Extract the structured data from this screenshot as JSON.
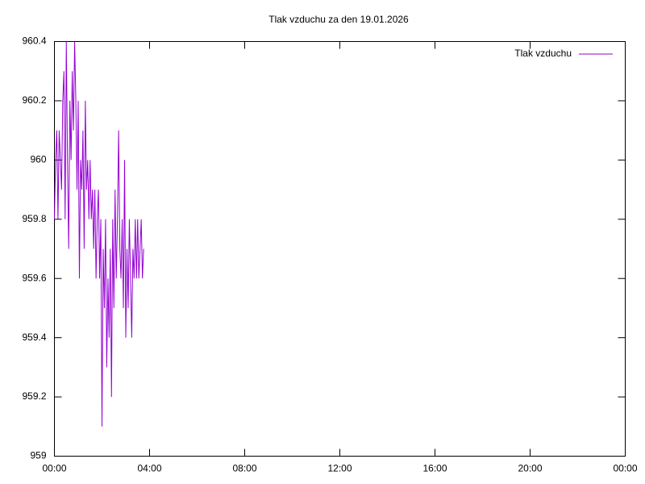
{
  "chart_data": {
    "type": "line",
    "title": "Tlak vzduchu za den 19.01.2026",
    "x": [
      0,
      0.05,
      0.1,
      0.15,
      0.2,
      0.25,
      0.3,
      0.35,
      0.4,
      0.45,
      0.5,
      0.55,
      0.6,
      0.65,
      0.7,
      0.75,
      0.8,
      0.85,
      0.9,
      0.95,
      1.0,
      1.05,
      1.1,
      1.15,
      1.2,
      1.25,
      1.3,
      1.35,
      1.4,
      1.45,
      1.5,
      1.55,
      1.6,
      1.65,
      1.7,
      1.75,
      1.8,
      1.85,
      1.9,
      1.95,
      2.0,
      2.05,
      2.1,
      2.15,
      2.2,
      2.25,
      2.3,
      2.35,
      2.4,
      2.45,
      2.5,
      2.55,
      2.6,
      2.65,
      2.7,
      2.75,
      2.8,
      2.85,
      2.9,
      2.95,
      3.0,
      3.05,
      3.1,
      3.15,
      3.2,
      3.25,
      3.3,
      3.35,
      3.4,
      3.45,
      3.5,
      3.55,
      3.6,
      3.65,
      3.7,
      3.75
    ],
    "series": [
      {
        "name": "Tlak vzduchu",
        "color": "#9400d3",
        "values": [
          959.8,
          960.0,
          960.1,
          959.8,
          960.1,
          960.0,
          959.9,
          960.2,
          960.3,
          959.8,
          960.4,
          960.0,
          959.7,
          960.2,
          960.0,
          960.3,
          960.1,
          960.4,
          960.2,
          959.9,
          960.2,
          959.6,
          960.0,
          959.9,
          960.1,
          959.7,
          960.2,
          959.9,
          960.0,
          959.8,
          960.0,
          959.8,
          959.9,
          959.7,
          959.9,
          959.6,
          959.8,
          959.9,
          959.6,
          959.8,
          959.1,
          959.7,
          959.5,
          959.8,
          959.3,
          959.6,
          959.4,
          959.7,
          959.2,
          959.8,
          959.5,
          959.9,
          959.6,
          959.8,
          960.1,
          959.7,
          959.6,
          959.8,
          959.5,
          960.0,
          959.4,
          959.7,
          959.5,
          959.8,
          959.6,
          959.4,
          959.7,
          959.6,
          959.8,
          959.6,
          959.8,
          959.6,
          959.7,
          959.8,
          959.6,
          959.7
        ]
      }
    ],
    "xlim": [
      0,
      24
    ],
    "xticks": [
      {
        "value": 0,
        "label": "00:00"
      },
      {
        "value": 4,
        "label": "04:00"
      },
      {
        "value": 8,
        "label": "08:00"
      },
      {
        "value": 12,
        "label": "12:00"
      },
      {
        "value": 16,
        "label": "16:00"
      },
      {
        "value": 20,
        "label": "20:00"
      },
      {
        "value": 24,
        "label": "00:00"
      }
    ],
    "ylim": [
      959,
      960.4
    ],
    "yticks": [
      959,
      959.2,
      959.4,
      959.6,
      959.8,
      960,
      960.2,
      960.4
    ],
    "legend": "top-right",
    "grid": false
  }
}
